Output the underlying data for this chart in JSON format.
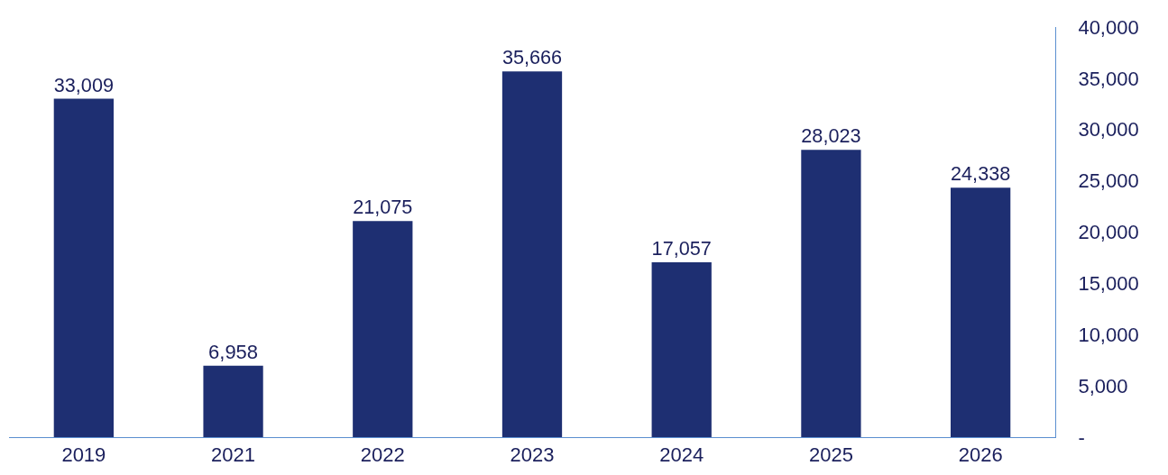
{
  "chart_data": {
    "type": "bar",
    "categories": [
      "2019",
      "2021",
      "2022",
      "2023",
      "2024",
      "2025",
      "2026"
    ],
    "values": [
      33009,
      6958,
      21075,
      35666,
      17057,
      28023,
      24338
    ],
    "color": "#1e2f72",
    "value_labels": [
      "33,009",
      "6,958",
      "21,075",
      "35,666",
      "17,057",
      "28,023",
      "24,338"
    ],
    "ylim": [
      0,
      40000
    ],
    "yticks": [
      {
        "value": 0,
        "label": "-"
      },
      {
        "value": 5000,
        "label": "5,000"
      },
      {
        "value": 10000,
        "label": "10,000"
      },
      {
        "value": 15000,
        "label": "15,000"
      },
      {
        "value": 20000,
        "label": "20,000"
      },
      {
        "value": 25000,
        "label": "25,000"
      },
      {
        "value": 30000,
        "label": "30,000"
      },
      {
        "value": 35000,
        "label": "35,000"
      },
      {
        "value": 40000,
        "label": "40,000"
      }
    ],
    "legend": false
  }
}
